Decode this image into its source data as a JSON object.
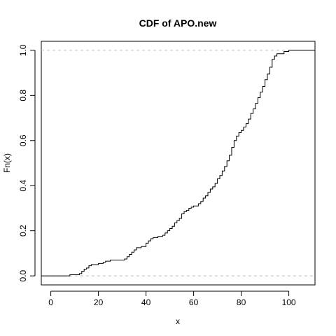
{
  "chart_data": {
    "type": "line",
    "title": "CDF of APO.new",
    "xlabel": "x",
    "ylabel": "Fn(x)",
    "xlim": [
      -4,
      111
    ],
    "ylim": [
      -0.04,
      1.04
    ],
    "x_ticks": [
      0,
      20,
      40,
      60,
      80,
      100
    ],
    "y_ticks": [
      0.0,
      0.2,
      0.4,
      0.6,
      0.8,
      1.0
    ],
    "x_tick_labels": [
      "0",
      "20",
      "40",
      "60",
      "80",
      "100"
    ],
    "y_tick_labels": [
      "0.0",
      "0.2",
      "0.4",
      "0.6",
      "0.8",
      "1.0"
    ],
    "reference_lines": [
      0,
      1
    ],
    "grid": false,
    "legend": "none",
    "series": [
      {
        "step": true,
        "points": [
          [
            -4,
            0.0
          ],
          [
            8,
            0.0
          ],
          [
            8,
            0.005
          ],
          [
            12,
            0.005
          ],
          [
            12,
            0.01
          ],
          [
            13,
            0.01
          ],
          [
            13,
            0.02
          ],
          [
            14,
            0.02
          ],
          [
            14,
            0.03
          ],
          [
            15,
            0.03
          ],
          [
            15,
            0.035
          ],
          [
            16,
            0.035
          ],
          [
            16,
            0.045
          ],
          [
            17,
            0.045
          ],
          [
            17,
            0.05
          ],
          [
            20,
            0.05
          ],
          [
            20,
            0.055
          ],
          [
            22,
            0.055
          ],
          [
            22,
            0.06
          ],
          [
            23,
            0.06
          ],
          [
            23,
            0.065
          ],
          [
            25,
            0.065
          ],
          [
            25,
            0.07
          ],
          [
            31,
            0.07
          ],
          [
            31,
            0.075
          ],
          [
            32,
            0.075
          ],
          [
            32,
            0.085
          ],
          [
            33,
            0.085
          ],
          [
            33,
            0.095
          ],
          [
            34,
            0.095
          ],
          [
            34,
            0.105
          ],
          [
            35,
            0.105
          ],
          [
            35,
            0.115
          ],
          [
            36,
            0.115
          ],
          [
            36,
            0.125
          ],
          [
            38,
            0.125
          ],
          [
            38,
            0.13
          ],
          [
            40,
            0.13
          ],
          [
            40,
            0.145
          ],
          [
            41,
            0.145
          ],
          [
            41,
            0.155
          ],
          [
            42,
            0.155
          ],
          [
            42,
            0.165
          ],
          [
            43,
            0.165
          ],
          [
            43,
            0.17
          ],
          [
            45,
            0.17
          ],
          [
            45,
            0.175
          ],
          [
            47,
            0.175
          ],
          [
            47,
            0.18
          ],
          [
            48,
            0.18
          ],
          [
            48,
            0.19
          ],
          [
            49,
            0.19
          ],
          [
            49,
            0.2
          ],
          [
            50,
            0.2
          ],
          [
            50,
            0.21
          ],
          [
            51,
            0.21
          ],
          [
            51,
            0.22
          ],
          [
            52,
            0.22
          ],
          [
            52,
            0.235
          ],
          [
            53,
            0.235
          ],
          [
            53,
            0.245
          ],
          [
            54,
            0.245
          ],
          [
            54,
            0.255
          ],
          [
            55,
            0.255
          ],
          [
            55,
            0.275
          ],
          [
            56,
            0.275
          ],
          [
            56,
            0.285
          ],
          [
            57,
            0.285
          ],
          [
            57,
            0.29
          ],
          [
            58,
            0.29
          ],
          [
            58,
            0.3
          ],
          [
            59,
            0.3
          ],
          [
            59,
            0.305
          ],
          [
            60,
            0.305
          ],
          [
            60,
            0.31
          ],
          [
            62,
            0.31
          ],
          [
            62,
            0.32
          ],
          [
            63,
            0.32
          ],
          [
            63,
            0.33
          ],
          [
            64,
            0.33
          ],
          [
            64,
            0.345
          ],
          [
            65,
            0.345
          ],
          [
            65,
            0.355
          ],
          [
            66,
            0.355
          ],
          [
            66,
            0.37
          ],
          [
            67,
            0.37
          ],
          [
            67,
            0.385
          ],
          [
            68,
            0.385
          ],
          [
            68,
            0.395
          ],
          [
            69,
            0.395
          ],
          [
            69,
            0.41
          ],
          [
            70,
            0.41
          ],
          [
            70,
            0.43
          ],
          [
            71,
            0.43
          ],
          [
            71,
            0.445
          ],
          [
            72,
            0.445
          ],
          [
            72,
            0.465
          ],
          [
            73,
            0.465
          ],
          [
            73,
            0.485
          ],
          [
            74,
            0.485
          ],
          [
            74,
            0.51
          ],
          [
            75,
            0.51
          ],
          [
            75,
            0.535
          ],
          [
            76,
            0.535
          ],
          [
            76,
            0.57
          ],
          [
            77,
            0.57
          ],
          [
            77,
            0.6
          ],
          [
            78,
            0.6
          ],
          [
            78,
            0.62
          ],
          [
            79,
            0.62
          ],
          [
            79,
            0.635
          ],
          [
            80,
            0.635
          ],
          [
            80,
            0.645
          ],
          [
            81,
            0.645
          ],
          [
            81,
            0.66
          ],
          [
            82,
            0.66
          ],
          [
            82,
            0.675
          ],
          [
            83,
            0.675
          ],
          [
            83,
            0.695
          ],
          [
            84,
            0.695
          ],
          [
            84,
            0.72
          ],
          [
            85,
            0.72
          ],
          [
            85,
            0.74
          ],
          [
            86,
            0.74
          ],
          [
            86,
            0.765
          ],
          [
            87,
            0.765
          ],
          [
            87,
            0.79
          ],
          [
            88,
            0.79
          ],
          [
            88,
            0.815
          ],
          [
            89,
            0.815
          ],
          [
            89,
            0.84
          ],
          [
            90,
            0.84
          ],
          [
            90,
            0.87
          ],
          [
            91,
            0.87
          ],
          [
            91,
            0.895
          ],
          [
            92,
            0.895
          ],
          [
            92,
            0.925
          ],
          [
            93,
            0.925
          ],
          [
            93,
            0.96
          ],
          [
            94,
            0.96
          ],
          [
            94,
            0.975
          ],
          [
            95,
            0.975
          ],
          [
            95,
            0.985
          ],
          [
            98,
            0.985
          ],
          [
            98,
            0.995
          ],
          [
            100,
            0.995
          ],
          [
            100,
            1.0
          ],
          [
            111,
            1.0
          ]
        ]
      }
    ]
  }
}
